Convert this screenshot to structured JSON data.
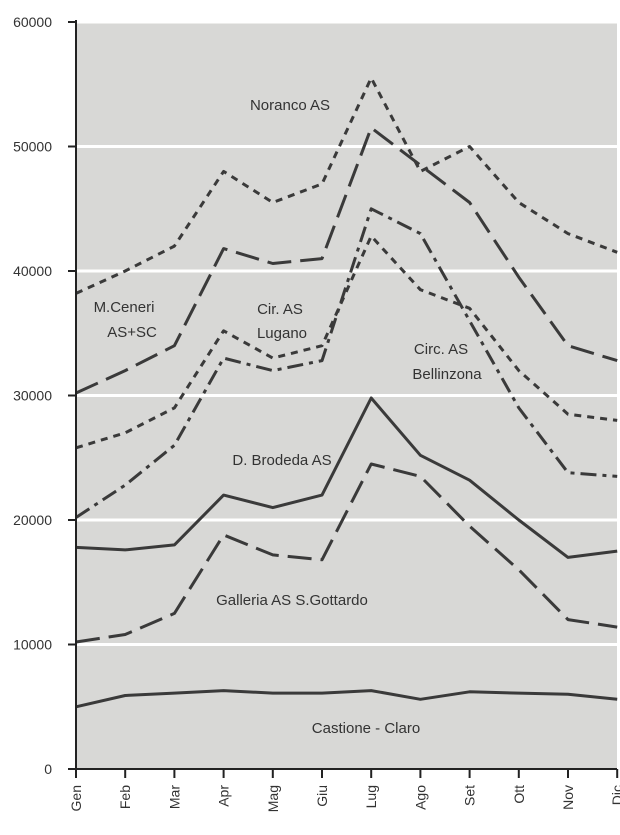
{
  "chart_data": {
    "type": "line",
    "title": "",
    "xlabel": "",
    "ylabel": "",
    "ylim": [
      0,
      60000
    ],
    "yticks": [
      0,
      10000,
      20000,
      30000,
      40000,
      50000,
      60000
    ],
    "ytick_labels": [
      "0",
      "10000",
      "20000",
      "30000",
      "40000",
      "50000",
      "60000"
    ],
    "categories": [
      "Gen",
      "Feb",
      "Mar",
      "Apr",
      "Mag",
      "Giu",
      "Lug",
      "Ago",
      "Set",
      "Ott",
      "Nov",
      "Dic"
    ],
    "grid": "horizontal",
    "legend": "none",
    "background_color": "#d8d8d6",
    "gridline_color": "#ffffff",
    "line_color": "#3a3a3a",
    "series": [
      {
        "name": "Noranco AS",
        "style": "short-dash",
        "values": [
          38200,
          40000,
          42000,
          48000,
          45500,
          47000,
          55500,
          48000,
          50000,
          45500,
          43000,
          41500
        ]
      },
      {
        "name": "M.Ceneri AS+SC",
        "style": "long-dash",
        "values": [
          30200,
          32000,
          34000,
          41800,
          40600,
          41000,
          51500,
          48500,
          45500,
          39500,
          34000,
          32800
        ]
      },
      {
        "name": "Cir. AS Lugano",
        "style": "short-dash",
        "values": [
          25800,
          27000,
          29000,
          35200,
          33000,
          34000,
          42800,
          38500,
          37000,
          32000,
          28500,
          28000
        ]
      },
      {
        "name": "Circ. AS Bellinzona",
        "style": "dash-dot",
        "values": [
          20200,
          22800,
          26000,
          33000,
          32000,
          32800,
          45000,
          43000,
          36000,
          29000,
          23800,
          23500
        ]
      },
      {
        "name": "D. Brodeda AS",
        "style": "solid",
        "values": [
          17800,
          17600,
          18000,
          22000,
          21000,
          22000,
          29800,
          25200,
          23200,
          20000,
          17000,
          17500
        ]
      },
      {
        "name": "Galleria AS S.Gottardo",
        "style": "long-dash",
        "values": [
          10200,
          10800,
          12500,
          18800,
          17200,
          16800,
          24500,
          23500,
          19500,
          16000,
          12000,
          11400
        ]
      },
      {
        "name": "Castione - Claro",
        "style": "solid",
        "values": [
          5000,
          5900,
          6100,
          6300,
          6100,
          6100,
          6300,
          5600,
          6200,
          6100,
          6000,
          5600
        ]
      }
    ],
    "annotations": [
      {
        "text": "Noranco AS",
        "near_series": "Noranco AS"
      },
      {
        "text": "M.Ceneri",
        "near_series": "M.Ceneri AS+SC"
      },
      {
        "text": "AS+SC",
        "near_series": "M.Ceneri AS+SC"
      },
      {
        "text": "Cir. AS",
        "near_series": "Cir. AS Lugano"
      },
      {
        "text": "Lugano",
        "near_series": "Cir. AS Lugano"
      },
      {
        "text": "Circ. AS",
        "near_series": "Circ. AS Bellinzona"
      },
      {
        "text": "Bellinzona",
        "near_series": "Circ. AS Bellinzona"
      },
      {
        "text": "D. Brodeda AS",
        "near_series": "D. Brodeda AS"
      },
      {
        "text": "Galleria AS S.Gottardo",
        "near_series": "Galleria AS S.Gottardo"
      },
      {
        "text": "Castione - Claro",
        "near_series": "Castione - Claro"
      }
    ]
  }
}
